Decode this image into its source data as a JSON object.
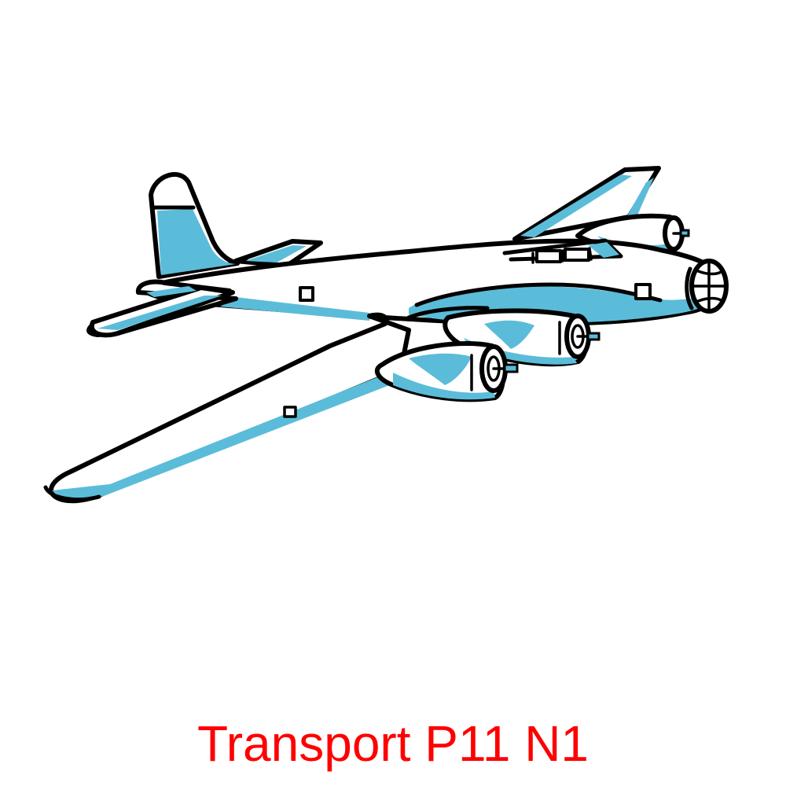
{
  "caption": "Transport P11 N1",
  "illustration": {
    "subject": "airplane-icon",
    "colors": {
      "outline": "#000000",
      "shade": "#5bbcd9",
      "fill": "#ffffff",
      "caption": "#ff0000"
    }
  }
}
